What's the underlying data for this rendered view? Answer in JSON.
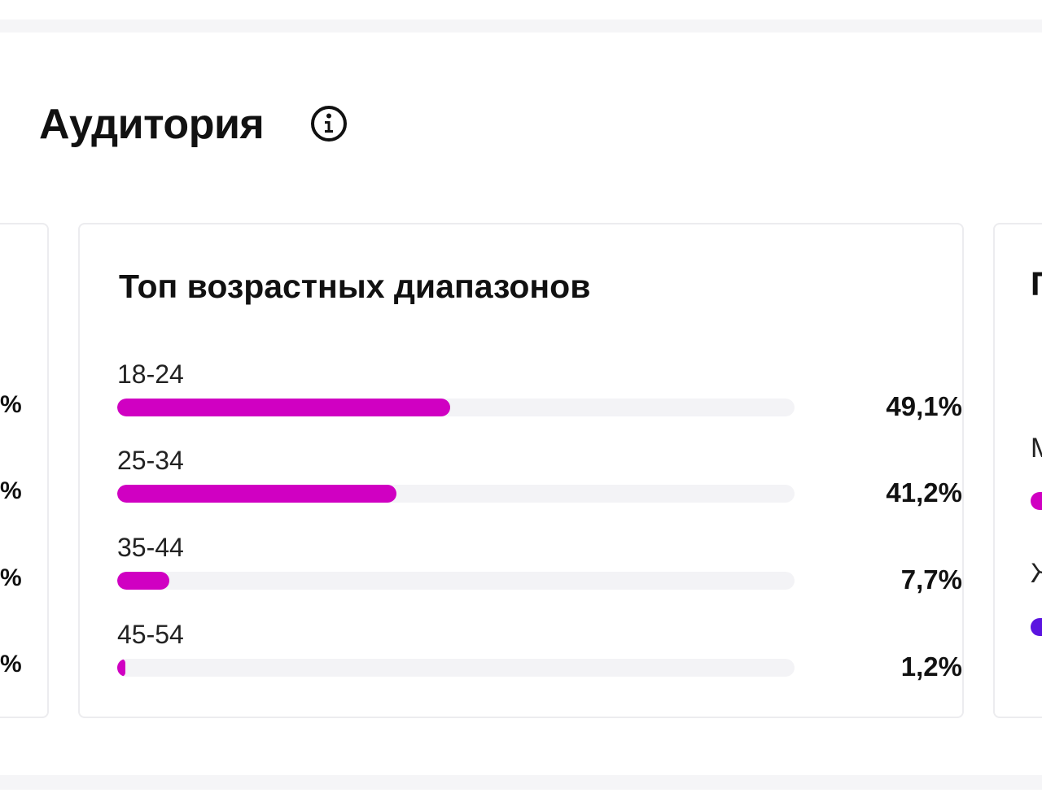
{
  "section": {
    "title": "Аудитория",
    "info_icon": "info-circle-icon"
  },
  "left_card": {
    "percent_fragments": [
      "%",
      "%",
      "%",
      "%"
    ]
  },
  "age_card": {
    "title": "Топ возрастных диапазонов",
    "bar_color": "#d000c2",
    "track_color": "#f3f3f6",
    "rows": [
      {
        "label": "18-24",
        "value_text": "49,1%",
        "value": 49.1
      },
      {
        "label": "25-34",
        "value_text": "41,2%",
        "value": 41.2
      },
      {
        "label": "35-44",
        "value_text": "7,7%",
        "value": 7.7
      },
      {
        "label": "45-54",
        "value_text": "1,2%",
        "value": 1.2
      }
    ]
  },
  "right_card": {
    "title_fragment": "П",
    "labels": [
      "М",
      "Ж"
    ],
    "bar_colors": [
      "#d000c2",
      "#5b14e0"
    ]
  }
}
